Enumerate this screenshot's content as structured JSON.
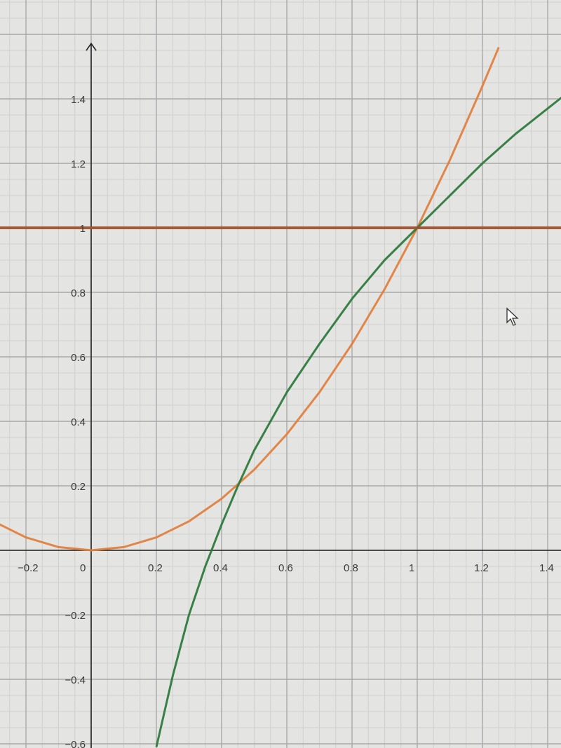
{
  "chart_data": {
    "type": "line",
    "title": "",
    "xlabel": "",
    "ylabel": "",
    "xlim": [
      -0.28,
      1.44
    ],
    "ylim": [
      -0.61,
      1.6
    ],
    "grid": true,
    "minor_grid_step": 0.05,
    "x_ticks": [
      "-0.2",
      "0",
      "0.2",
      "0.4",
      "0.6",
      "0.8",
      "1",
      "1.2",
      "1.4"
    ],
    "x_tick_values": [
      -0.2,
      0,
      0.2,
      0.4,
      0.6,
      0.8,
      1,
      1.2,
      1.4
    ],
    "y_ticks": [
      "1.4",
      "1.2",
      "1",
      "0.8",
      "0.6",
      "0.4",
      "0.2",
      "-0.2",
      "-0.4",
      "-0.6"
    ],
    "y_tick_values": [
      1.4,
      1.2,
      1,
      0.8,
      0.6,
      0.4,
      0.2,
      -0.2,
      -0.4,
      -0.6
    ],
    "series": [
      {
        "color": "#e0813f",
        "x": [
          -0.3,
          -0.2,
          -0.1,
          0,
          0.1,
          0.2,
          0.3,
          0.4,
          0.5,
          0.6,
          0.7,
          0.8,
          0.9,
          1.0,
          1.1,
          1.2,
          1.25
        ],
        "y": [
          0.09,
          0.04,
          0.01,
          0,
          0.01,
          0.04,
          0.09,
          0.16,
          0.25,
          0.36,
          0.49,
          0.64,
          0.81,
          1,
          1.21,
          1.44,
          1.56
        ]
      },
      {
        "color": "#2e7a3c",
        "x": [
          0.2,
          0.25,
          0.3,
          0.35,
          0.4,
          0.45,
          0.5,
          0.6,
          0.7,
          0.8,
          0.9,
          1.0,
          1.1,
          1.2,
          1.3,
          1.45
        ],
        "y": [
          -0.61,
          -0.39,
          -0.2,
          -0.05,
          0.08,
          0.2,
          0.31,
          0.49,
          0.64,
          0.78,
          0.9,
          1.0,
          1.1,
          1.2,
          1.29,
          1.41
        ]
      },
      {
        "color": "#a0522d",
        "x": [
          -0.3,
          1.45
        ],
        "y": [
          1,
          1
        ]
      }
    ],
    "colors": {
      "axis": "#222222",
      "major_grid": "#a8a8a8",
      "minor_grid": "#cfcfcd",
      "background": "#e4e4e2"
    }
  },
  "cursor": {
    "icon": "mouse-pointer-icon"
  }
}
